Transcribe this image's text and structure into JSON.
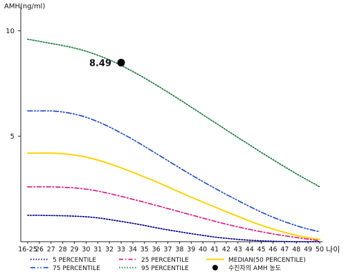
{
  "chart_data": {
    "type": "line",
    "ylabel": "AMH(ng/ml)",
    "xlabel": "나이",
    "ylim": [
      0,
      11
    ],
    "y_ticks": [
      5,
      10
    ],
    "grid": false,
    "categories": [
      "16-25",
      "26",
      "27",
      "28",
      "29",
      "30",
      "31",
      "32",
      "33",
      "34",
      "35",
      "36",
      "37",
      "38",
      "39",
      "40",
      "41",
      "42",
      "43",
      "44",
      "45",
      "46",
      "47",
      "48",
      "49",
      "50"
    ],
    "series": [
      {
        "name": "5 PERCENTILE",
        "color": "#00008b",
        "dash": "dotted",
        "values": [
          1.25,
          1.25,
          1.24,
          1.23,
          1.21,
          1.18,
          1.13,
          1.05,
          0.96,
          0.87,
          0.77,
          0.66,
          0.56,
          0.47,
          0.38,
          0.3,
          0.22,
          0.16,
          0.11,
          0.07,
          0.04,
          0.02,
          0.01,
          0.0,
          0.0,
          0.0
        ]
      },
      {
        "name": "25 PERCENTILE",
        "color": "#e0188a",
        "dash": "dashdot",
        "values": [
          2.6,
          2.6,
          2.6,
          2.58,
          2.55,
          2.49,
          2.4,
          2.28,
          2.15,
          2.01,
          1.87,
          1.72,
          1.57,
          1.42,
          1.27,
          1.12,
          0.97,
          0.83,
          0.7,
          0.58,
          0.47,
          0.37,
          0.28,
          0.2,
          0.12,
          0.05
        ]
      },
      {
        "name": "MEDIAN(50 PERCENTILE)",
        "color": "#ffd200",
        "dash": "solid",
        "values": [
          4.2,
          4.2,
          4.2,
          4.17,
          4.11,
          4.01,
          3.87,
          3.7,
          3.5,
          3.29,
          3.07,
          2.84,
          2.6,
          2.35,
          2.11,
          1.88,
          1.65,
          1.42,
          1.2,
          0.98,
          0.78,
          0.6,
          0.44,
          0.3,
          0.19,
          0.11
        ]
      },
      {
        "name": "75 PERCENTILE",
        "color": "#1f4fc8",
        "dash": "dashdotdot",
        "values": [
          6.2,
          6.2,
          6.2,
          6.15,
          6.05,
          5.9,
          5.69,
          5.44,
          5.15,
          4.85,
          4.52,
          4.18,
          3.84,
          3.5,
          3.17,
          2.85,
          2.54,
          2.24,
          1.95,
          1.67,
          1.4,
          1.16,
          0.95,
          0.76,
          0.6,
          0.47
        ]
      },
      {
        "name": "95 PERCENTILE",
        "color": "#1e7b3e",
        "dash": "dotted",
        "values": [
          9.6,
          9.5,
          9.4,
          9.3,
          9.18,
          9.03,
          8.84,
          8.62,
          8.36,
          8.07,
          7.76,
          7.43,
          7.09,
          6.74,
          6.38,
          6.02,
          5.66,
          5.3,
          4.94,
          4.59,
          4.23,
          3.89,
          3.55,
          3.22,
          2.91,
          2.6
        ]
      }
    ],
    "marker": {
      "name": "수진자의 AMH 농도",
      "category": "33",
      "value": 8.49,
      "label": "8.49",
      "color": "#000000"
    },
    "legend_position": "bottom"
  }
}
